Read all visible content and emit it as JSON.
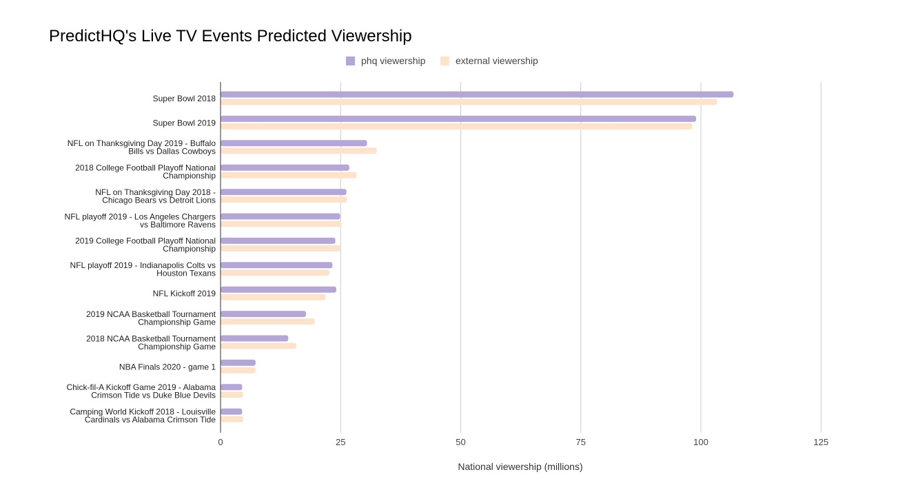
{
  "chart_data": {
    "type": "bar",
    "orientation": "horizontal",
    "title": "PredictHQ's Live TV Events Predicted Viewership",
    "xlabel": "National viewership (millions)",
    "ylabel": "",
    "xlim": [
      0,
      130
    ],
    "xticks": [
      "0",
      "25",
      "50",
      "75",
      "100",
      "125"
    ],
    "grid": true,
    "legend_position": "top-center",
    "categories": [
      [
        "Super Bowl 2018"
      ],
      [
        "Super Bowl 2019"
      ],
      [
        "NFL on Thanksgiving Day 2019 - Buffalo",
        "Bills vs Dallas Cowboys"
      ],
      [
        "2018 College Football Playoff National",
        "Championship"
      ],
      [
        "NFL on Thanksgiving Day 2018 -",
        "Chicago Bears vs Detroit Lions"
      ],
      [
        "NFL playoff 2019 - Los Angeles Chargers",
        "vs Baltimore Ravens"
      ],
      [
        "2019 College Football Playoff National",
        "Championship"
      ],
      [
        "NFL playoff 2019 - Indianapolis Colts vs",
        "Houston Texans"
      ],
      [
        "NFL Kickoff 2019"
      ],
      [
        "2019 NCAA Basketball Tournament",
        "Championship Game"
      ],
      [
        "2018 NCAA Basketball Tournament",
        "Championship Game"
      ],
      [
        "NBA Finals 2020 - game 1"
      ],
      [
        "Chick-fil-A Kickoff Game 2019 - Alabama",
        "Crimson Tide vs Duke Blue Devils"
      ],
      [
        "Camping World Kickoff 2018 - Louisville",
        "Cardinals vs Alabama Crimson Tide"
      ]
    ],
    "series": [
      {
        "name": "phq viewership",
        "color": "#b4a7d6",
        "values": [
          106.8,
          99.0,
          30.5,
          26.8,
          26.2,
          24.9,
          23.9,
          23.3,
          24.1,
          17.8,
          14.1,
          7.3,
          4.5,
          4.5
        ]
      },
      {
        "name": "external viewership",
        "color": "#fde3cc",
        "values": [
          103.4,
          98.2,
          32.5,
          28.3,
          26.3,
          25.2,
          25.0,
          22.7,
          21.9,
          19.6,
          15.8,
          7.3,
          4.7,
          4.7
        ]
      }
    ]
  }
}
